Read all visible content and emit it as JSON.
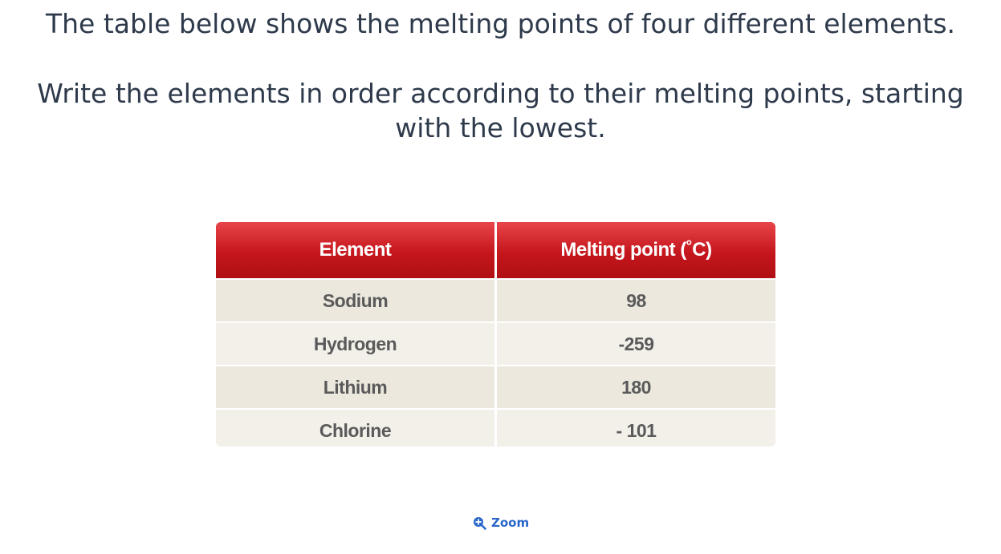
{
  "question": {
    "line1": "The table below shows the melting points of four different elements.",
    "line2": "Write the elements in order according to their melting points, starting with the lowest."
  },
  "table": {
    "headers": [
      "Element",
      "Melting point (˚C)"
    ],
    "rows": [
      [
        "Sodium",
        "98"
      ],
      [
        "Hydrogen",
        "-259"
      ],
      [
        "Lithium",
        "180"
      ],
      [
        "Chlorine",
        "- 101"
      ]
    ]
  },
  "zoom": {
    "label": "Zoom",
    "icon": "zoom-in-icon"
  },
  "colors": {
    "header_top": "#e8454a",
    "header_bottom": "#b01014",
    "row_odd": "#ece8de",
    "row_even": "#f3f0ea",
    "text": "#2e3a4b",
    "link": "#2a66c9"
  }
}
